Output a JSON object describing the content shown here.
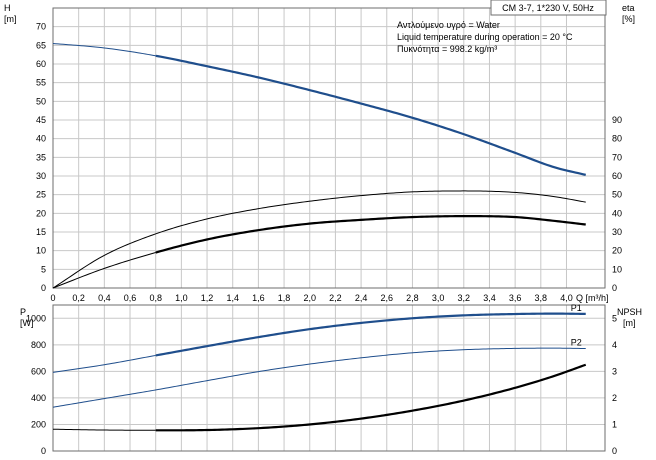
{
  "pump_title": "CM 3-7, 1*230 V, 50Hz",
  "info_lines": [
    "Αντλούμενο υγρό = Water",
    "Liquid temperature during operation = 20 °C",
    "Πυκνότητα = 998.2 kg/m³"
  ],
  "colors": {
    "blue": "#1f4e8c",
    "black": "#000000",
    "grid": "#c8c8c8",
    "frame": "#6e6e6e"
  },
  "chart_data": [
    {
      "type": "line",
      "title": "CM 3-7, 1*230 V, 50Hz",
      "ylabel_left": "H",
      "ylabel_left_unit": "[m]",
      "ylabel_right": "eta",
      "ylabel_right_unit": "[%]",
      "xlabel": "Q [m³/h]",
      "xlim": [
        0,
        4.3
      ],
      "ylim_left": [
        0,
        75
      ],
      "ylim_right": [
        0,
        150
      ],
      "x_ticks": [
        0,
        0.2,
        0.4,
        0.6,
        0.8,
        1.0,
        1.2,
        1.4,
        1.6,
        1.8,
        2.0,
        2.2,
        2.4,
        2.6,
        2.8,
        3.0,
        3.2,
        3.4,
        3.6,
        3.8,
        4.0
      ],
      "x_tick_labels": [
        "0",
        "0,2",
        "0,4",
        "0,6",
        "0,8",
        "1,0",
        "1,2",
        "1,4",
        "1,6",
        "1,8",
        "2,0",
        "2,2",
        "2,4",
        "2,6",
        "2,8",
        "3,0",
        "3,2",
        "3,4",
        "3,6",
        "3,8",
        "4,0"
      ],
      "y_left_ticks": [
        0,
        5,
        10,
        15,
        20,
        25,
        30,
        35,
        40,
        45,
        50,
        55,
        60,
        65,
        70
      ],
      "y_right_ticks": [
        0,
        10,
        20,
        30,
        40,
        50,
        60,
        70,
        80,
        90
      ],
      "grid": true,
      "series": [
        {
          "axis": "left",
          "color": "#1f4e8c",
          "x": [
            0,
            0.4,
            0.8,
            1.2,
            1.6,
            2.0,
            2.4,
            2.8,
            3.2,
            3.6,
            3.9,
            4.15
          ],
          "y": [
            65.5,
            64.3,
            62.2,
            59.4,
            56.4,
            53.0,
            49.4,
            45.6,
            41.2,
            36.2,
            32.4,
            30.3
          ],
          "bold_from": 0.8
        },
        {
          "axis": "right",
          "color": "#000000",
          "x": [
            0,
            0.4,
            0.8,
            1.2,
            1.6,
            2.0,
            2.4,
            2.8,
            3.2,
            3.6,
            3.9,
            4.15
          ],
          "y": [
            0,
            17.5,
            29,
            37,
            42.5,
            46.5,
            49.5,
            51.5,
            52,
            51.2,
            49,
            46
          ],
          "bold_from": 99
        },
        {
          "axis": "right",
          "color": "#000000",
          "x": [
            0,
            0.4,
            0.8,
            1.2,
            1.6,
            2.0,
            2.4,
            2.8,
            3.2,
            3.6,
            3.9,
            4.15
          ],
          "y": [
            0,
            10.5,
            19,
            26,
            31,
            34.5,
            36.5,
            38,
            38.5,
            38,
            36,
            34
          ],
          "bold_from": 0.8
        }
      ]
    },
    {
      "type": "line",
      "ylabel_left": "P",
      "ylabel_left_unit": "[W]",
      "ylabel_right": "NPSH",
      "ylabel_right_unit": "[m]",
      "xlim": [
        0,
        4.3
      ],
      "ylim_left": [
        0,
        1100
      ],
      "ylim_right": [
        0,
        5.5
      ],
      "y_left_ticks": [
        0,
        200,
        400,
        600,
        800,
        1000
      ],
      "y_right_ticks": [
        0,
        1,
        2,
        3,
        4,
        5
      ],
      "grid": true,
      "series": [
        {
          "name": "P1",
          "axis": "left",
          "color": "#1f4e8c",
          "x": [
            0,
            0.4,
            0.8,
            1.2,
            1.6,
            2.0,
            2.4,
            2.8,
            3.2,
            3.6,
            3.9,
            4.15
          ],
          "y": [
            592,
            650,
            720,
            790,
            858,
            918,
            965,
            1000,
            1022,
            1032,
            1035,
            1033
          ],
          "bold_from": 0.8
        },
        {
          "name": "P2",
          "axis": "left",
          "color": "#1f4e8c",
          "x": [
            0,
            0.4,
            0.8,
            1.2,
            1.6,
            2.0,
            2.4,
            2.8,
            3.2,
            3.6,
            3.9,
            4.15
          ],
          "y": [
            330,
            395,
            460,
            530,
            598,
            655,
            702,
            740,
            763,
            773,
            775,
            772
          ],
          "bold_from": 99
        },
        {
          "axis": "right",
          "color": "#000000",
          "x": [
            0,
            0.4,
            0.8,
            1.2,
            1.6,
            2.0,
            2.4,
            2.8,
            3.2,
            3.6,
            3.9,
            4.15
          ],
          "y": [
            0.82,
            0.79,
            0.78,
            0.79,
            0.86,
            1.0,
            1.22,
            1.52,
            1.9,
            2.38,
            2.82,
            3.25
          ],
          "bold_from": 0.8
        }
      ]
    }
  ]
}
